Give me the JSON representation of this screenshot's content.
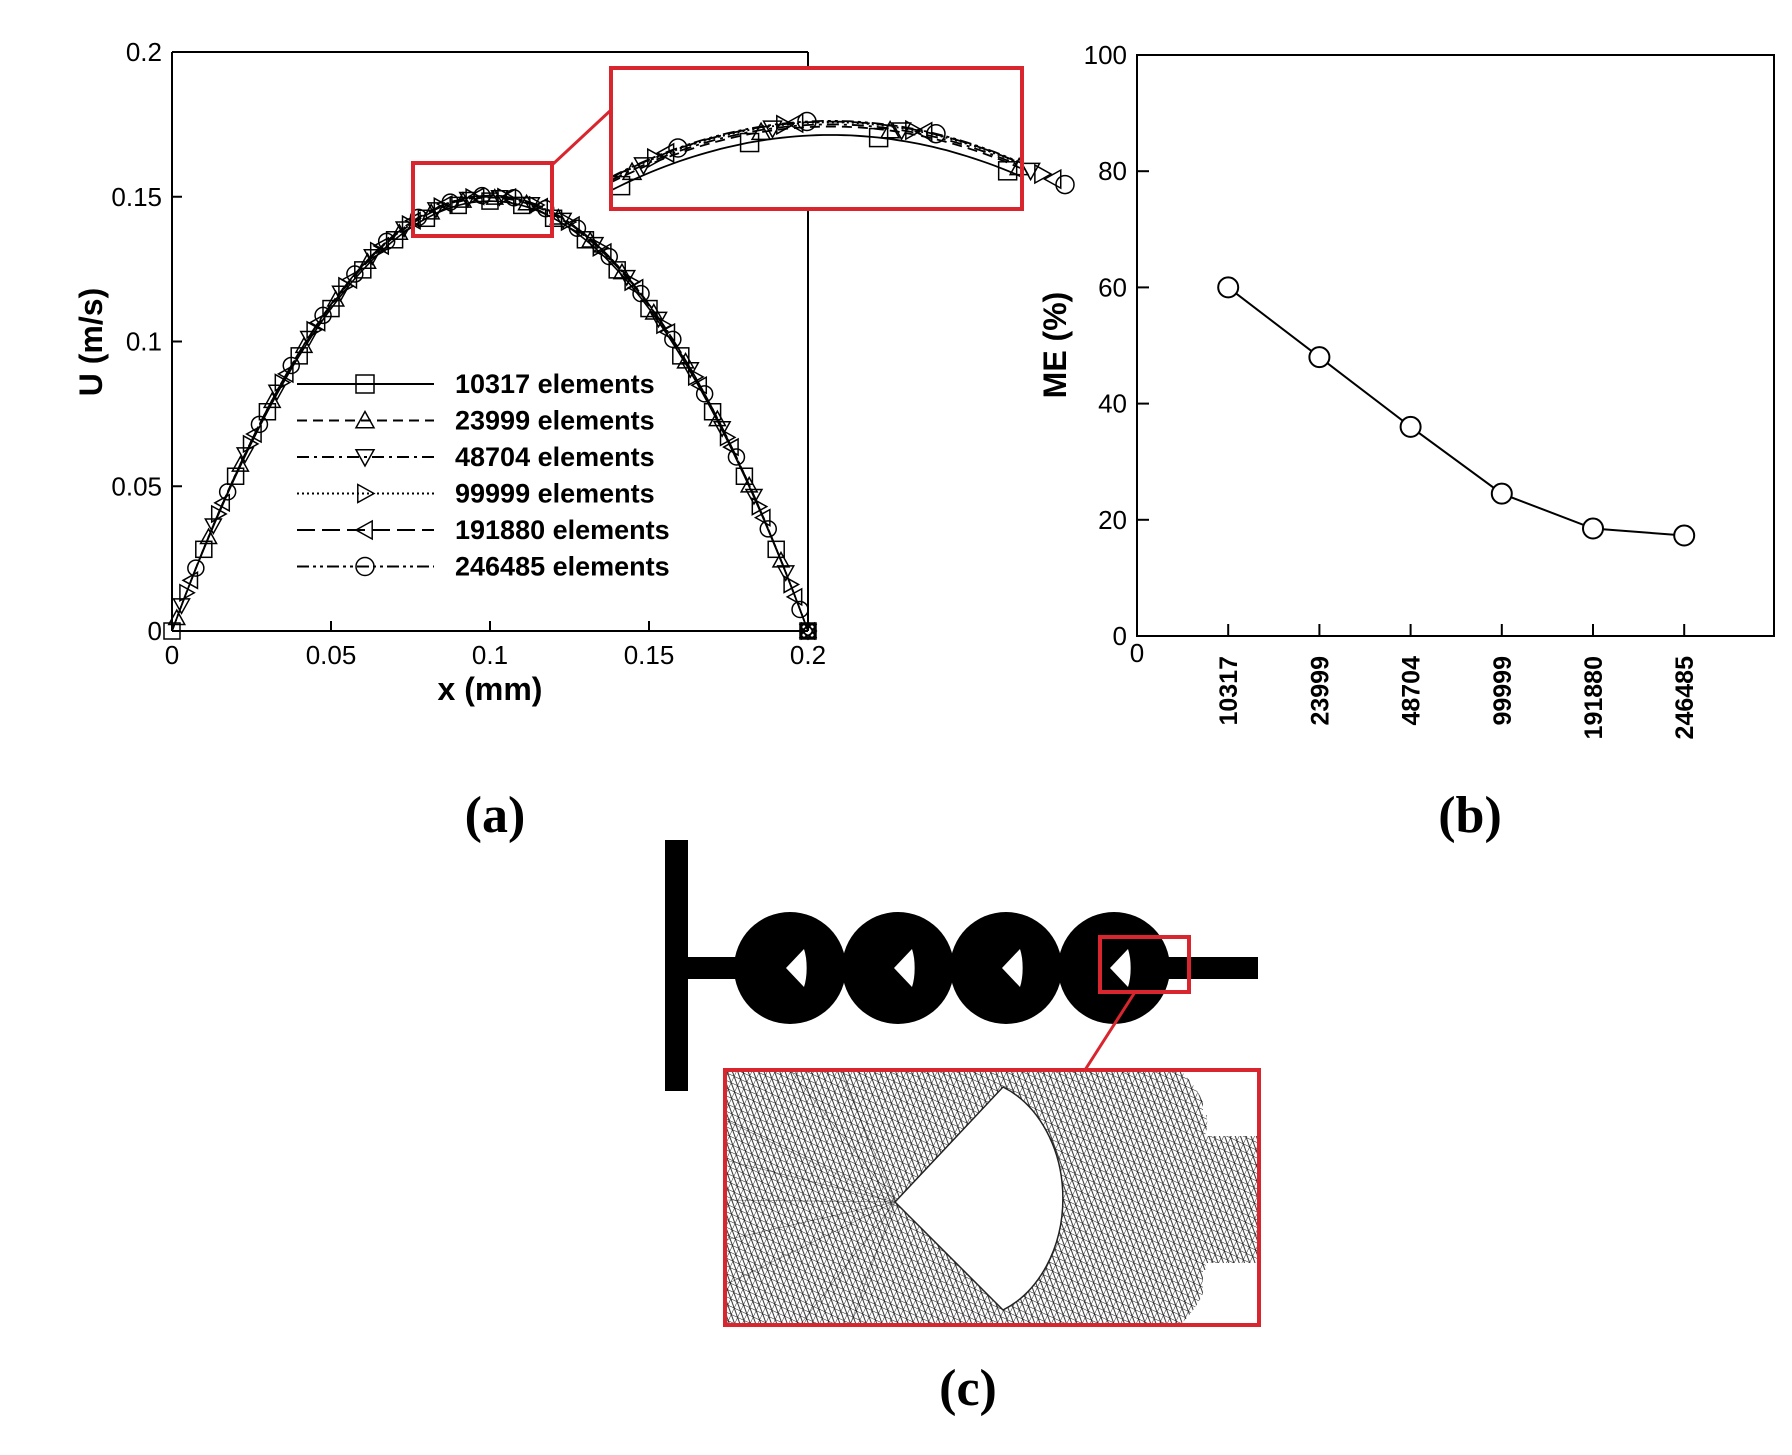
{
  "panel_labels": {
    "a": "(a)",
    "b": "(b)",
    "c": "(c)"
  },
  "colors": {
    "highlight": "#d9252e",
    "ink": "#000000"
  },
  "chart_data": [
    {
      "panel": "(a)",
      "type": "line",
      "xlabel": "x (mm)",
      "ylabel": "U (m/s)",
      "xlim": [
        0,
        0.2
      ],
      "ylim": [
        0,
        0.2
      ],
      "xticks": [
        "0",
        "0.05",
        "0.1",
        "0.15",
        "0.2"
      ],
      "yticks": [
        "0",
        "0.05",
        "0.1",
        "0.15",
        "0.2"
      ],
      "grid": false,
      "legend_position": "bottom-center",
      "profile_shape": "parabolic",
      "series": [
        {
          "name": "10317 elements",
          "peak": 0.1485,
          "marker": "square",
          "dash": "solid"
        },
        {
          "name": "23999 elements",
          "peak": 0.1497,
          "marker": "triangle-up",
          "dash": "dashed"
        },
        {
          "name": "48704 elements",
          "peak": 0.15,
          "marker": "triangle-down",
          "dash": "dashdot"
        },
        {
          "name": "99999 elements",
          "peak": 0.1503,
          "marker": "triangle-right",
          "dash": "dotted"
        },
        {
          "name": "191880 elements",
          "peak": 0.1504,
          "marker": "triangle-left",
          "dash": "longdash"
        },
        {
          "name": "246485 elements",
          "peak": 0.1505,
          "marker": "circle",
          "dash": "dashdotdot"
        }
      ],
      "inset": "zoom of peak region (x 0.077–0.12, U 0.14–0.16)"
    },
    {
      "panel": "(b)",
      "type": "line",
      "xlabel": "",
      "ylabel": "ME (%)",
      "ylim": [
        0,
        100
      ],
      "yticks": [
        "0",
        "20",
        "40",
        "60",
        "80",
        "100"
      ],
      "x_origin_label": "0",
      "categories": [
        "10317",
        "23999",
        "48704",
        "99999",
        "191880",
        "246485"
      ],
      "values": [
        60,
        48,
        36,
        24.5,
        18.5,
        17.3
      ],
      "marker": "circle",
      "grid": false
    }
  ]
}
